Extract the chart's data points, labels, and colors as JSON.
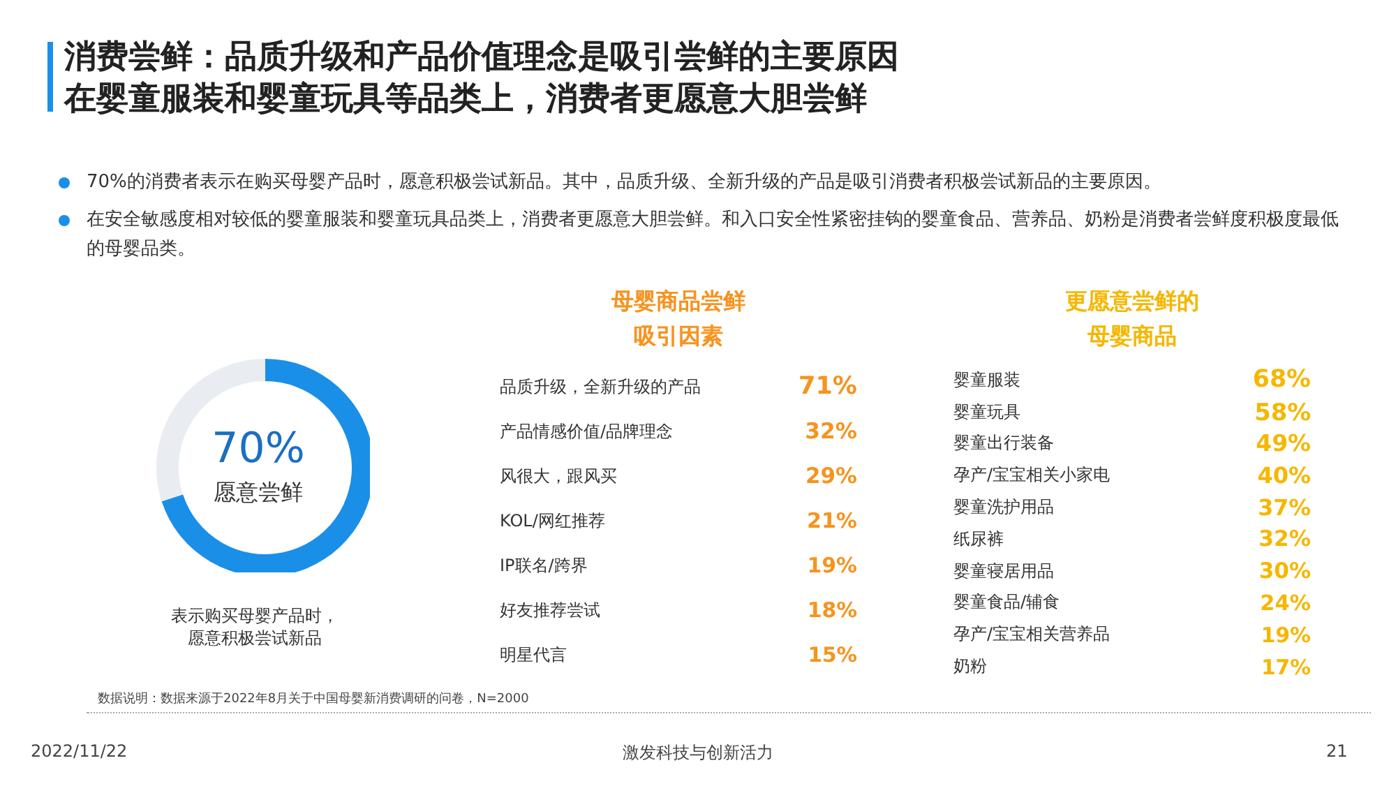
{
  "chart_data": [
    {
      "type": "donut",
      "title": "消费尝鲜：品质升级和产品价值理念是吸引尝鲜的主要原因在婴童服装和婴童玩具等品类上，消费者更愿意大胆尝鲜",
      "categories": [
        "愿意尝鲜",
        null
      ],
      "values": [
        70,
        30
      ],
      "colors": [
        "#1a8fe8",
        "#e9edf2"
      ],
      "value_labels": [
        "70%",
        null
      ],
      "annotations": [
        "70%的消费者表示在购买母婴产品时，愿意积极尝试新品。其中，品质升级、全新升级的产品是吸引消费者积极尝试新品的主要原因。",
        "在安全敏感度相对较低的婴童服装和婴童玩具品类上，消费者更愿意大胆尝鲜。和入口安全性紧密挂钩的婴童食品、营养品、奶粉是消费者尝鲜度积极度最低的母婴品类。",
        "表示购买母婴产品时，愿意积极尝试新品",
        "数据说明：数据来源于2022年8月关于中国母婴新消费调研的问卷，N=2000",
        "2022/11/22",
        "激发科技与创新活力",
        "21"
      ]
    },
    {
      "type": "other",
      "title": "母婴商品尝鲜吸引因素",
      "categories": [
        "品质升级，全新升级的产品",
        "产品情感价值/品牌理念",
        "风很大，跟风买",
        "KOL/网红推荐",
        "IP联名/跨界",
        "好友推荐尝试",
        "明星代言"
      ],
      "values": [
        71,
        32,
        29,
        21,
        19,
        18,
        15
      ],
      "value_labels": [
        "71%",
        "32%",
        "29%",
        "21%",
        "19%",
        "18%",
        "15%"
      ],
      "color": "#f7931e"
    },
    {
      "type": "other",
      "title": "更愿意尝鲜的母婴商品",
      "categories": [
        "婴童服装",
        "婴童玩具",
        "婴童出行装备",
        "孕产/宝宝相关小家电",
        "婴童洗护用品",
        "纸尿裤",
        "婴童寝居用品",
        "婴童食品/辅食",
        "孕产/宝宝相关营养品",
        "奶粉"
      ],
      "values": [
        68,
        58,
        49,
        40,
        37,
        32,
        30,
        24,
        19,
        17
      ],
      "value_labels": [
        "68%",
        "58%",
        "49%",
        "40%",
        "37%",
        "32%",
        "30%",
        "24%",
        "19%",
        "17%"
      ],
      "color": "#f5b700"
    }
  ]
}
